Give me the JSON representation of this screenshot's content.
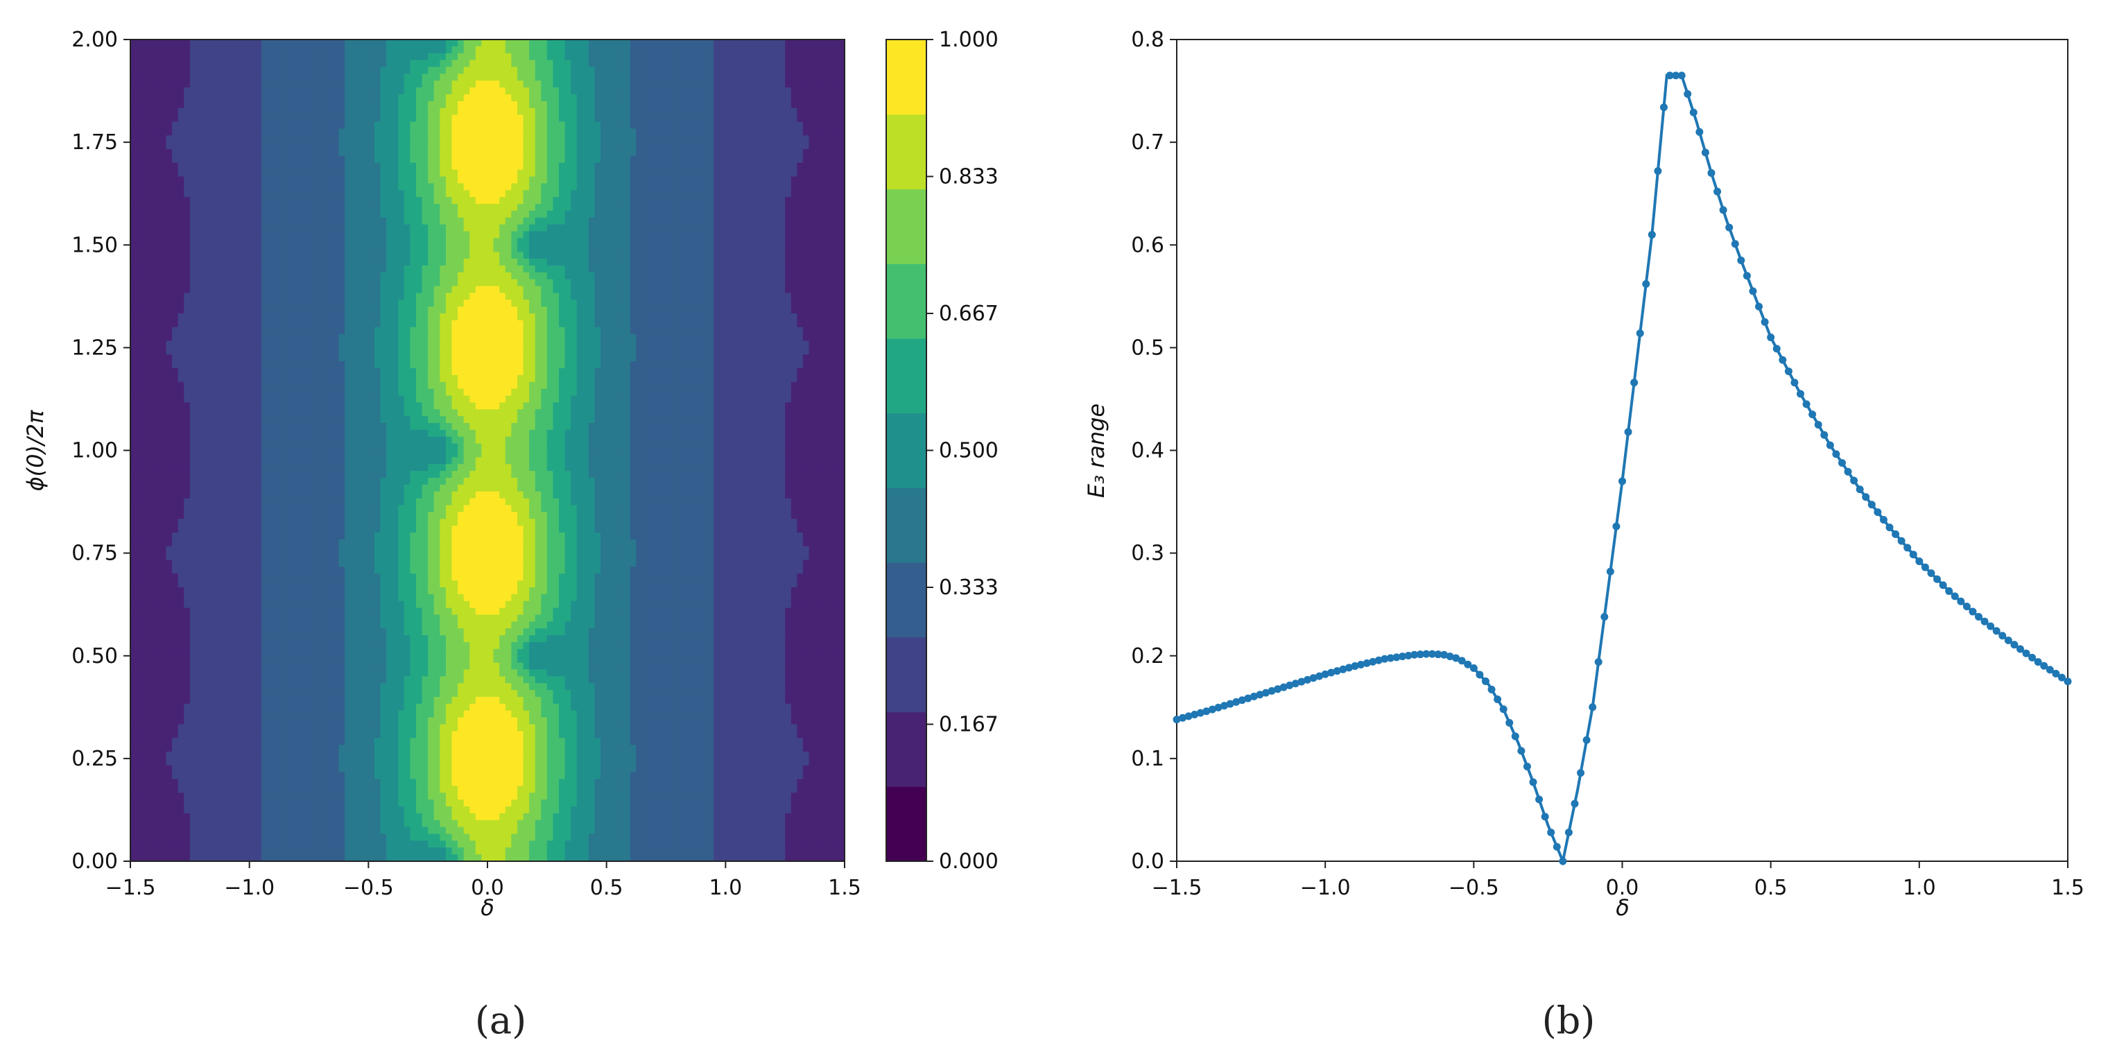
{
  "chart_data": [
    {
      "type": "heatmap",
      "panel_label": "(a)",
      "xlabel": "δ",
      "ylabel": "ϕ(0)/2π",
      "xlim": [
        -1.5,
        1.5
      ],
      "ylim": [
        0.0,
        2.0
      ],
      "x_ticks": [
        "−1.5",
        "−1.0",
        "−0.5",
        "0.0",
        "0.5",
        "1.0",
        "1.5"
      ],
      "y_ticks": [
        "0.00",
        "0.25",
        "0.50",
        "0.75",
        "1.00",
        "1.25",
        "1.50",
        "1.75",
        "2.00"
      ],
      "colorbar": {
        "range": [
          0.0,
          1.0
        ],
        "levels": 12,
        "tick_labels": [
          "0.000",
          "0.167",
          "0.333",
          "0.500",
          "0.667",
          "0.833",
          "1.000"
        ],
        "colormap": [
          "#440154",
          "#482374",
          "#404387",
          "#345e8d",
          "#29788e",
          "#20908d",
          "#22a785",
          "#44bf70",
          "#7ad151",
          "#bddf26",
          "#fde725"
        ]
      },
      "features": {
        "bright_ridge_center_delta": 0.0,
        "peak_value": 1.0,
        "peak_phases": [
          0.25,
          0.75,
          1.25,
          1.75
        ],
        "minima_phases_near_ridge": [
          0.0,
          0.5,
          1.0,
          1.5,
          2.0
        ],
        "minima_delta_offsets": [
          -0.2,
          0.2
        ]
      }
    },
    {
      "type": "line",
      "panel_label": "(b)",
      "xlabel": "δ",
      "ylabel": "E₃ range",
      "xlim": [
        -1.5,
        1.5
      ],
      "ylim": [
        0.0,
        0.8
      ],
      "x_ticks": [
        "−1.5",
        "−1.0",
        "−0.5",
        "0.0",
        "0.5",
        "1.0",
        "1.5"
      ],
      "y_ticks": [
        "0.0",
        "0.1",
        "0.2",
        "0.3",
        "0.4",
        "0.5",
        "0.6",
        "0.7",
        "0.8"
      ],
      "color": "#1f77b4",
      "series": [
        {
          "name": "E3 range",
          "x": [
            -1.5,
            -1.4,
            -1.3,
            -1.2,
            -1.1,
            -1.0,
            -0.9,
            -0.8,
            -0.7,
            -0.65,
            -0.6,
            -0.55,
            -0.5,
            -0.45,
            -0.4,
            -0.35,
            -0.3,
            -0.25,
            -0.2,
            -0.15,
            -0.1,
            -0.05,
            0.0,
            0.05,
            0.1,
            0.15,
            0.2,
            0.25,
            0.3,
            0.35,
            0.4,
            0.5,
            0.6,
            0.7,
            0.8,
            0.9,
            1.0,
            1.1,
            1.2,
            1.3,
            1.4,
            1.5
          ],
          "y": [
            0.138,
            0.146,
            0.155,
            0.164,
            0.173,
            0.182,
            0.19,
            0.197,
            0.201,
            0.202,
            0.201,
            0.197,
            0.188,
            0.172,
            0.148,
            0.115,
            0.077,
            0.035,
            0.0,
            0.07,
            0.15,
            0.26,
            0.37,
            0.49,
            0.61,
            0.765,
            0.765,
            0.72,
            0.67,
            0.625,
            0.585,
            0.51,
            0.455,
            0.405,
            0.362,
            0.325,
            0.292,
            0.263,
            0.238,
            0.215,
            0.194,
            0.175
          ]
        }
      ]
    }
  ]
}
